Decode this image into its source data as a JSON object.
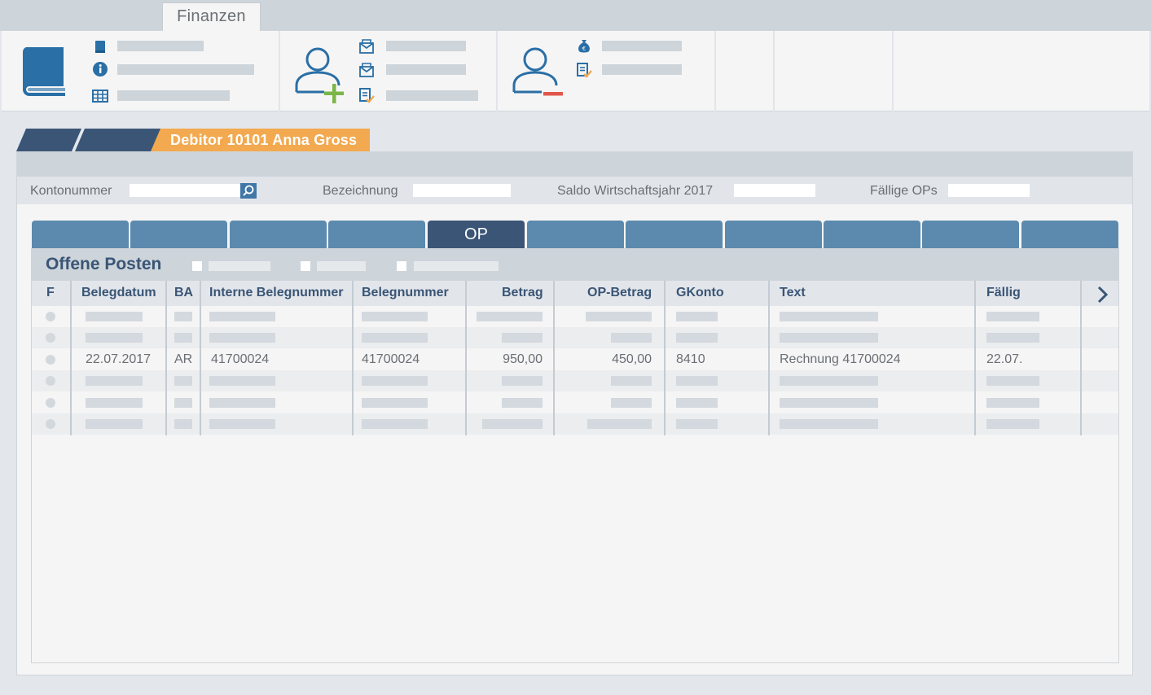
{
  "ribbon": {
    "tab_label": "Finanzen",
    "groups": [
      {
        "name": "book",
        "icons": [
          "book-small-icon",
          "info-icon",
          "table-icon"
        ]
      },
      {
        "name": "add-debitor",
        "icons": [
          "envelope-icon",
          "envelope-icon",
          "document-check-icon"
        ]
      },
      {
        "name": "remove-debitor",
        "icons": [
          "money-bag-icon",
          "document-check-icon"
        ]
      }
    ],
    "accent_blue": "#2a6fa6",
    "add_green": "#7ab648",
    "remove_red": "#e2574c"
  },
  "breadcrumb": {
    "current": "Debitor 10101 Anna Gross",
    "color": "#f2a94f"
  },
  "filter": {
    "kontonummer_label": "Kontonummer",
    "kontonummer_value": "",
    "bezeichnung_label": "Bezeichnung",
    "saldo_label": "Saldo Wirtschaftsjahr 2017",
    "faellige_label": "Fällige OPs"
  },
  "tabs": {
    "active_label": "OP",
    "active_index": 4,
    "count": 11
  },
  "section": {
    "title": "Offene Posten"
  },
  "table": {
    "headers": {
      "f": "F",
      "belegdatum": "Belegdatum",
      "ba": "BA",
      "interne": "Interne Belegnummer",
      "belegnummer": "Belegnummer",
      "betrag": "Betrag",
      "op_betrag": "OP-Betrag",
      "gkonto": "GKonto",
      "text": "Text",
      "faellig": "Fällig"
    },
    "row3": {
      "belegdatum": "22.07.2017",
      "ba": "AR",
      "interne": "41700024",
      "belegnummer": "41700024",
      "betrag": "950,00",
      "op_betrag": "450,00",
      "gkonto": "8410",
      "text": "Rechnung 41700024",
      "faellig": "22.07."
    }
  }
}
